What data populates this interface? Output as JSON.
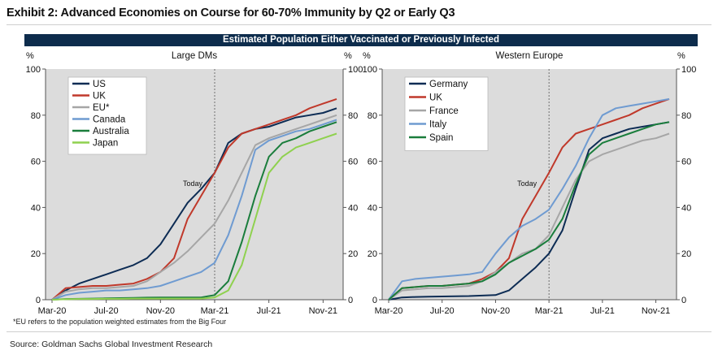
{
  "header": {
    "title": "Exhibit 2: Advanced Economies on Course for 60-70% Immunity by Q2 or Early Q3",
    "banner": "Estimated Population Either Vaccinated or Previously Infected"
  },
  "footnote": "*EU refers to the population weighted estimates from the Big Four",
  "source": "Source: Goldman Sachs Global Investment Research",
  "chart_data": [
    {
      "type": "line",
      "title": "Large DMs",
      "ylabel_left": "%",
      "ylabel_right": "%",
      "ylim": [
        0,
        100
      ],
      "yticks": [
        0,
        20,
        40,
        60,
        80,
        100
      ],
      "xlim": [
        0,
        21
      ],
      "xticks": [
        {
          "x": 0,
          "label": "Mar-20"
        },
        {
          "x": 4,
          "label": "Jul-20"
        },
        {
          "x": 8,
          "label": "Nov-20"
        },
        {
          "x": 12,
          "label": "Mar-21"
        },
        {
          "x": 16,
          "label": "Jul-21"
        },
        {
          "x": 20,
          "label": "Nov-21"
        }
      ],
      "today": {
        "x": 12,
        "label": "Today"
      },
      "legend_position": "top-left",
      "series": [
        {
          "name": "US",
          "color": "#0d2c54",
          "x": [
            0,
            1,
            2,
            3,
            4,
            5,
            6,
            7,
            8,
            9,
            10,
            11,
            12,
            13,
            14,
            15,
            16,
            17,
            18,
            19,
            20,
            21
          ],
          "values": [
            0,
            4,
            7,
            9,
            11,
            13,
            15,
            18,
            24,
            33,
            42,
            48,
            55,
            68,
            72,
            74,
            75,
            77,
            79,
            80,
            81,
            83
          ]
        },
        {
          "name": "UK",
          "color": "#c0392b",
          "x": [
            0,
            1,
            2,
            3,
            4,
            5,
            6,
            7,
            8,
            9,
            10,
            11,
            12,
            13,
            14,
            15,
            16,
            17,
            18,
            19,
            20,
            21
          ],
          "values": [
            0,
            5,
            5.5,
            6,
            6,
            6.5,
            7,
            9,
            12,
            18,
            35,
            45,
            55,
            66,
            72,
            74,
            76,
            78,
            80,
            83,
            85,
            87
          ]
        },
        {
          "name": "EU*",
          "color": "#a6a6a6",
          "x": [
            0,
            1,
            2,
            3,
            4,
            5,
            6,
            7,
            8,
            9,
            10,
            11,
            12,
            13,
            14,
            15,
            16,
            17,
            18,
            19,
            20,
            21
          ],
          "values": [
            0,
            3.5,
            4.5,
            5,
            5,
            5.5,
            6,
            8,
            12,
            16,
            21,
            27,
            33,
            43,
            55,
            67,
            70,
            72,
            74,
            76,
            78,
            80
          ]
        },
        {
          "name": "Canada",
          "color": "#6f9bd1",
          "x": [
            0,
            1,
            2,
            3,
            4,
            5,
            6,
            7,
            8,
            9,
            10,
            11,
            12,
            13,
            14,
            15,
            16,
            17,
            18,
            19,
            20,
            21
          ],
          "values": [
            0,
            2,
            3,
            3.5,
            4,
            4,
            4.5,
            5,
            6,
            8,
            10,
            12,
            16,
            28,
            45,
            65,
            69,
            71,
            73,
            74,
            76,
            78
          ]
        },
        {
          "name": "Australia",
          "color": "#1a7d3c",
          "x": [
            0,
            1,
            2,
            3,
            4,
            5,
            6,
            7,
            8,
            9,
            10,
            11,
            12,
            13,
            14,
            15,
            16,
            17,
            18,
            19,
            20,
            21
          ],
          "values": [
            0,
            0.3,
            0.4,
            0.5,
            0.6,
            0.7,
            0.8,
            0.9,
            1,
            1,
            1,
            1,
            2,
            8,
            25,
            45,
            62,
            68,
            70,
            73,
            75,
            77
          ]
        },
        {
          "name": "Japan",
          "color": "#8fd14f",
          "x": [
            0,
            1,
            2,
            3,
            4,
            5,
            6,
            7,
            8,
            9,
            10,
            11,
            12,
            13,
            14,
            15,
            16,
            17,
            18,
            19,
            20,
            21
          ],
          "values": [
            0,
            0.2,
            0.3,
            0.3,
            0.4,
            0.4,
            0.5,
            0.5,
            0.5,
            0.5,
            0.5,
            0.5,
            1,
            4,
            15,
            35,
            55,
            62,
            66,
            68,
            70,
            72
          ]
        }
      ]
    },
    {
      "type": "line",
      "title": "Western Europe",
      "ylabel_left": "%",
      "ylabel_right": "%",
      "ylim": [
        0,
        100
      ],
      "yticks": [
        0,
        20,
        40,
        60,
        80,
        100
      ],
      "xlim": [
        0,
        21
      ],
      "xticks": [
        {
          "x": 0,
          "label": "Mar-20"
        },
        {
          "x": 4,
          "label": "Jul-20"
        },
        {
          "x": 8,
          "label": "Nov-20"
        },
        {
          "x": 12,
          "label": "Mar-21"
        },
        {
          "x": 16,
          "label": "Jul-21"
        },
        {
          "x": 20,
          "label": "Nov-21"
        }
      ],
      "today": {
        "x": 12,
        "label": "Today"
      },
      "legend_position": "top-left",
      "series": [
        {
          "name": "Germany",
          "color": "#0d2c54",
          "x": [
            0,
            1,
            2,
            3,
            4,
            5,
            6,
            7,
            8,
            9,
            10,
            11,
            12,
            13,
            14,
            15,
            16,
            17,
            18,
            19,
            20,
            21
          ],
          "values": [
            0,
            1,
            1.2,
            1.3,
            1.4,
            1.5,
            1.6,
            1.8,
            2,
            4,
            9,
            14,
            20,
            30,
            48,
            65,
            70,
            72,
            74,
            75,
            76,
            77
          ]
        },
        {
          "name": "UK",
          "color": "#c0392b",
          "x": [
            0,
            1,
            2,
            3,
            4,
            5,
            6,
            7,
            8,
            9,
            10,
            11,
            12,
            13,
            14,
            15,
            16,
            17,
            18,
            19,
            20,
            21
          ],
          "values": [
            0,
            5,
            5.5,
            6,
            6,
            6.5,
            7,
            9,
            12,
            18,
            35,
            45,
            55,
            66,
            72,
            74,
            76,
            78,
            80,
            83,
            85,
            87
          ]
        },
        {
          "name": "France",
          "color": "#a6a6a6",
          "x": [
            0,
            1,
            2,
            3,
            4,
            5,
            6,
            7,
            8,
            9,
            10,
            11,
            12,
            13,
            14,
            15,
            16,
            17,
            18,
            19,
            20,
            21
          ],
          "values": [
            0,
            4,
            4.5,
            5,
            5,
            5.5,
            6,
            8,
            12,
            16,
            20,
            22,
            28,
            40,
            52,
            60,
            63,
            65,
            67,
            69,
            70,
            72
          ]
        },
        {
          "name": "Italy",
          "color": "#6f9bd1",
          "x": [
            0,
            1,
            2,
            3,
            4,
            5,
            6,
            7,
            8,
            9,
            10,
            11,
            12,
            13,
            14,
            15,
            16,
            17,
            18,
            19,
            20,
            21
          ],
          "values": [
            0,
            8,
            9,
            9.5,
            10,
            10.5,
            11,
            12,
            20,
            27,
            32,
            35,
            39,
            48,
            58,
            70,
            80,
            83,
            84,
            85,
            86,
            87
          ]
        },
        {
          "name": "Spain",
          "color": "#1a7d3c",
          "x": [
            0,
            1,
            2,
            3,
            4,
            5,
            6,
            7,
            8,
            9,
            10,
            11,
            12,
            13,
            14,
            15,
            16,
            17,
            18,
            19,
            20,
            21
          ],
          "values": [
            0,
            5,
            5.5,
            6,
            6,
            6.5,
            7,
            8,
            11,
            16,
            19,
            22,
            26,
            35,
            50,
            63,
            68,
            70,
            72,
            74,
            76,
            77
          ]
        }
      ]
    }
  ]
}
